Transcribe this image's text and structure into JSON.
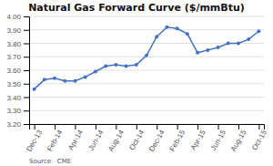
{
  "chart_data": {
    "type": "line",
    "title": "Natural Gas Forward Curve ($/mmBtu)",
    "annotations": [
      "Source:  CME"
    ],
    "categories": [
      "Dec-13",
      null,
      "Feb-14",
      null,
      "Apr-14",
      null,
      "Jun-14",
      null,
      "Aug-14",
      null,
      "Oct-14",
      null,
      "Dec-14",
      null,
      "Feb-15",
      null,
      "Apr-15",
      null,
      "Jun-15",
      null,
      "Aug-15",
      null,
      "Oct-15"
    ],
    "values": [
      3.46,
      3.53,
      3.54,
      3.52,
      3.52,
      3.55,
      3.59,
      3.63,
      3.64,
      3.63,
      3.64,
      3.71,
      3.85,
      3.92,
      3.91,
      3.87,
      3.73,
      3.75,
      3.77,
      3.8,
      3.8,
      3.83,
      3.89
    ],
    "color": "#4472C4",
    "marker": "circle",
    "ylim": [
      3.2,
      4.0
    ],
    "yticks": [
      {
        "value": 3.2,
        "label": "3.20"
      },
      {
        "value": 3.3,
        "label": "3.30"
      },
      {
        "value": 3.4,
        "label": "3.40"
      },
      {
        "value": 3.5,
        "label": "3.50"
      },
      {
        "value": 3.6,
        "label": "3.60"
      },
      {
        "value": 3.7,
        "label": "3.70"
      },
      {
        "value": 3.8,
        "label": "3.80"
      },
      {
        "value": 3.9,
        "label": "3.90"
      },
      {
        "value": 4.0,
        "label": "4.00"
      }
    ],
    "grid": true
  }
}
